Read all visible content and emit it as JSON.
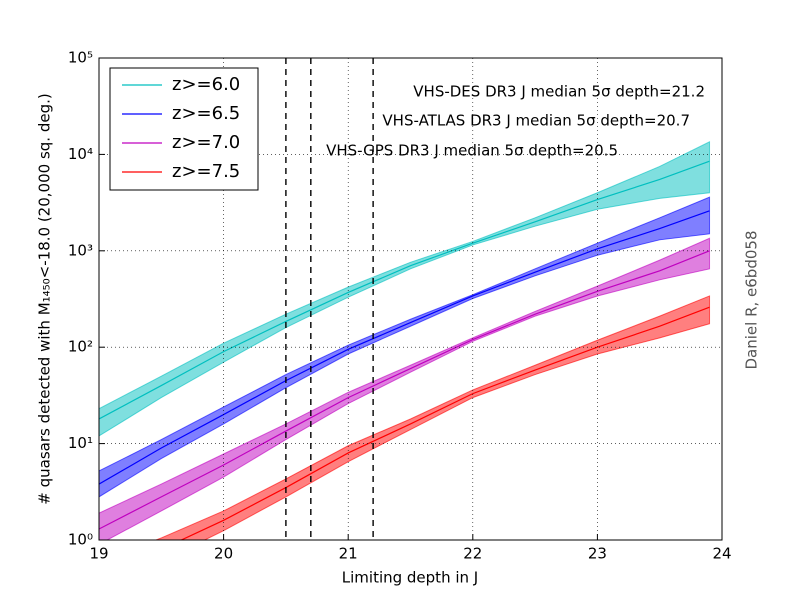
{
  "chart_data": {
    "type": "line",
    "xlabel": "Limiting depth in J",
    "ylabel": "# quasars detected with M₁₄₅₀<-18.0 (20,000 sq. deg.)",
    "side_note": "Daniel R, e6bd058",
    "x": [
      19,
      19.5,
      20,
      20.5,
      21,
      21.5,
      22,
      22.5,
      23,
      23.5,
      23.9
    ],
    "xlim": [
      19,
      24
    ],
    "xticks": [
      19,
      20,
      21,
      22,
      23,
      24
    ],
    "ylim": [
      1,
      100000
    ],
    "log_y": true,
    "grid": true,
    "legend": "upper left",
    "yticks": [
      {
        "value": 1,
        "label": "10⁰"
      },
      {
        "value": 10,
        "label": "10¹"
      },
      {
        "value": 100,
        "label": "10²"
      },
      {
        "value": 1000,
        "label": "10³"
      },
      {
        "value": 10000,
        "label": "10⁴"
      },
      {
        "value": 100000,
        "label": "10⁵"
      }
    ],
    "series": [
      {
        "name": "z>=6.0",
        "color": "#00bfbf",
        "values": [
          18,
          40,
          90,
          185,
          370,
          700,
          1200,
          2000,
          3400,
          5500,
          8500
        ],
        "lower": [
          12,
          30,
          70,
          160,
          330,
          650,
          1150,
          1800,
          2700,
          3500,
          4000
        ],
        "upper": [
          23,
          50,
          110,
          220,
          420,
          760,
          1250,
          2200,
          4000,
          7500,
          13500
        ]
      },
      {
        "name": "z>=6.5",
        "color": "#0000ff",
        "values": [
          3.8,
          9,
          20,
          45,
          95,
          180,
          340,
          600,
          1050,
          1700,
          2600
        ],
        "lower": [
          2.8,
          7,
          16,
          38,
          85,
          165,
          320,
          550,
          900,
          1300,
          1500
        ],
        "upper": [
          5.2,
          11,
          24,
          52,
          105,
          195,
          350,
          650,
          1200,
          2200,
          3600
        ]
      },
      {
        "name": "z>=7.0",
        "color": "#bf00bf",
        "values": [
          1.3,
          2.8,
          6,
          13.5,
          30,
          60,
          120,
          220,
          380,
          620,
          1000
        ],
        "lower": [
          0.9,
          2.0,
          4.5,
          11,
          26,
          55,
          115,
          210,
          340,
          500,
          650
        ],
        "upper": [
          1.9,
          3.8,
          7.8,
          16,
          34,
          65,
          125,
          235,
          430,
          800,
          1350
        ]
      },
      {
        "name": "z>=7.5",
        "color": "#ff0000",
        "values": [
          0.45,
          0.8,
          1.6,
          3.5,
          8,
          16,
          33,
          58,
          100,
          165,
          260
        ],
        "lower": [
          0.35,
          0.6,
          1.25,
          2.8,
          6.5,
          14,
          30,
          52,
          85,
          125,
          175
        ],
        "upper": [
          0.6,
          1.05,
          2.0,
          4.3,
          9.5,
          18,
          36,
          65,
          118,
          210,
          340
        ]
      }
    ],
    "vlines": [
      21.2,
      20.7,
      20.5
    ],
    "annotations": [
      "VHS-DES DR3 J median 5σ depth=21.2",
      "VHS-ATLAS DR3 J median 5σ depth=20.7",
      "VHS-GPS DR3 J median 5σ depth=20.5"
    ]
  }
}
